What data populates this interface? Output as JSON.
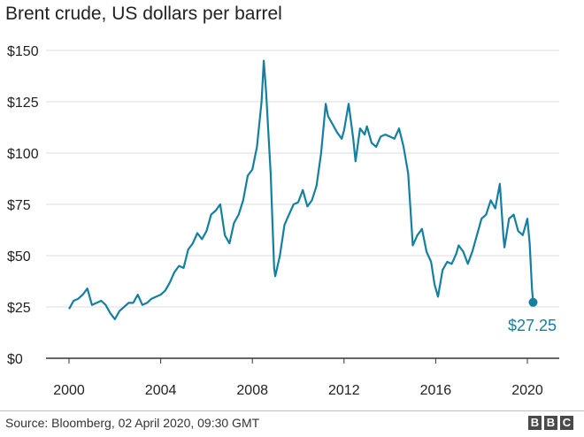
{
  "chart_data": {
    "type": "line",
    "title": "Brent crude, US dollars per barrel",
    "xlabel": "",
    "ylabel": "",
    "x_ticks": [
      "2000",
      "2004",
      "2008",
      "2012",
      "2016",
      "2020"
    ],
    "y_ticks": [
      "$0",
      "$25",
      "$50",
      "$75",
      "$100",
      "$125",
      "$150"
    ],
    "xlim": [
      2000,
      2020.5
    ],
    "ylim": [
      0,
      150
    ],
    "grid": true,
    "series": [
      {
        "color": "#1380a1",
        "points": [
          [
            2000.0,
            24
          ],
          [
            2000.2,
            28
          ],
          [
            2000.4,
            29
          ],
          [
            2000.6,
            31
          ],
          [
            2000.8,
            34
          ],
          [
            2001.0,
            26
          ],
          [
            2001.2,
            27
          ],
          [
            2001.4,
            28
          ],
          [
            2001.6,
            26
          ],
          [
            2001.8,
            22
          ],
          [
            2002.0,
            19
          ],
          [
            2002.2,
            23
          ],
          [
            2002.4,
            25
          ],
          [
            2002.6,
            27
          ],
          [
            2002.8,
            27
          ],
          [
            2003.0,
            31
          ],
          [
            2003.2,
            26
          ],
          [
            2003.4,
            27
          ],
          [
            2003.6,
            29
          ],
          [
            2003.8,
            30
          ],
          [
            2004.0,
            31
          ],
          [
            2004.2,
            33
          ],
          [
            2004.4,
            37
          ],
          [
            2004.6,
            42
          ],
          [
            2004.8,
            45
          ],
          [
            2005.0,
            44
          ],
          [
            2005.2,
            53
          ],
          [
            2005.4,
            56
          ],
          [
            2005.6,
            61
          ],
          [
            2005.8,
            58
          ],
          [
            2006.0,
            62
          ],
          [
            2006.2,
            70
          ],
          [
            2006.4,
            72
          ],
          [
            2006.6,
            75
          ],
          [
            2006.8,
            60
          ],
          [
            2007.0,
            56
          ],
          [
            2007.2,
            66
          ],
          [
            2007.4,
            70
          ],
          [
            2007.6,
            77
          ],
          [
            2007.8,
            89
          ],
          [
            2008.0,
            92
          ],
          [
            2008.2,
            103
          ],
          [
            2008.4,
            125
          ],
          [
            2008.5,
            145
          ],
          [
            2008.6,
            130
          ],
          [
            2008.8,
            90
          ],
          [
            2008.95,
            44
          ],
          [
            2009.0,
            40
          ],
          [
            2009.2,
            50
          ],
          [
            2009.4,
            65
          ],
          [
            2009.6,
            70
          ],
          [
            2009.8,
            75
          ],
          [
            2010.0,
            76
          ],
          [
            2010.2,
            82
          ],
          [
            2010.4,
            74
          ],
          [
            2010.6,
            77
          ],
          [
            2010.8,
            84
          ],
          [
            2011.0,
            100
          ],
          [
            2011.2,
            124
          ],
          [
            2011.3,
            118
          ],
          [
            2011.5,
            114
          ],
          [
            2011.7,
            110
          ],
          [
            2011.9,
            107
          ],
          [
            2012.0,
            111
          ],
          [
            2012.2,
            124
          ],
          [
            2012.4,
            107
          ],
          [
            2012.5,
            96
          ],
          [
            2012.7,
            112
          ],
          [
            2012.9,
            109
          ],
          [
            2013.0,
            113
          ],
          [
            2013.2,
            105
          ],
          [
            2013.4,
            103
          ],
          [
            2013.6,
            108
          ],
          [
            2013.8,
            109
          ],
          [
            2014.0,
            108
          ],
          [
            2014.2,
            107
          ],
          [
            2014.4,
            112
          ],
          [
            2014.6,
            103
          ],
          [
            2014.8,
            90
          ],
          [
            2015.0,
            55
          ],
          [
            2015.2,
            60
          ],
          [
            2015.4,
            63
          ],
          [
            2015.6,
            52
          ],
          [
            2015.8,
            47
          ],
          [
            2015.95,
            36
          ],
          [
            2016.1,
            30
          ],
          [
            2016.3,
            43
          ],
          [
            2016.5,
            47
          ],
          [
            2016.7,
            46
          ],
          [
            2016.9,
            51
          ],
          [
            2017.0,
            55
          ],
          [
            2017.2,
            52
          ],
          [
            2017.4,
            46
          ],
          [
            2017.6,
            52
          ],
          [
            2017.8,
            60
          ],
          [
            2018.0,
            68
          ],
          [
            2018.2,
            70
          ],
          [
            2018.4,
            77
          ],
          [
            2018.6,
            73
          ],
          [
            2018.8,
            85
          ],
          [
            2018.95,
            60
          ],
          [
            2019.0,
            54
          ],
          [
            2019.2,
            68
          ],
          [
            2019.4,
            70
          ],
          [
            2019.6,
            62
          ],
          [
            2019.8,
            60
          ],
          [
            2020.0,
            68
          ],
          [
            2020.1,
            56
          ],
          [
            2020.2,
            34
          ],
          [
            2020.25,
            27.25
          ]
        ]
      }
    ],
    "annotation": {
      "label": "$27.25",
      "x": 2020.25,
      "y": 27.25
    }
  },
  "footer": {
    "source": "Source: Bloomberg, 02 April 2020, 09:30 GMT",
    "logo_letters": [
      "B",
      "B",
      "C"
    ]
  }
}
